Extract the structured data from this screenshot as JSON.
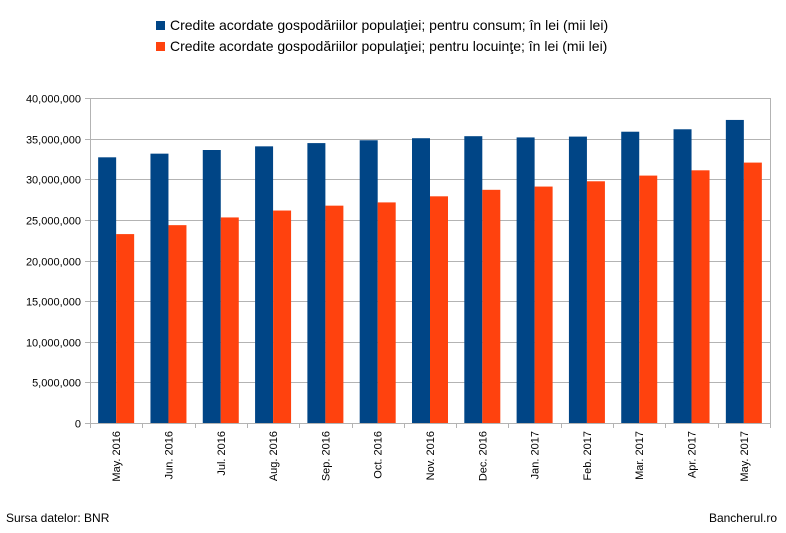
{
  "chart_data": {
    "type": "bar",
    "categories": [
      "May. 2016",
      "Jun. 2016",
      "Jul. 2016",
      "Aug. 2016",
      "Sep. 2016",
      "Oct. 2016",
      "Nov. 2016",
      "Dec. 2016",
      "Jan. 2017",
      "Feb. 2017",
      "Mar. 2017",
      "Apr. 2017",
      "May. 2017"
    ],
    "series": [
      {
        "name": "Credite acordate gospodăriilor populaţiei; pentru consum; în lei (mii lei)",
        "color": "#004586",
        "values": [
          32700000,
          33150000,
          33600000,
          34050000,
          34450000,
          34800000,
          35050000,
          35300000,
          35150000,
          35250000,
          35850000,
          36150000,
          37300000
        ]
      },
      {
        "name": "Credite acordate gospodăriilor populaţiei; pentru locuinţe; în lei (mii lei)",
        "color": "#ff420e",
        "values": [
          23250000,
          24350000,
          25300000,
          26150000,
          26750000,
          27150000,
          27900000,
          28700000,
          29100000,
          29750000,
          30450000,
          31100000,
          32050000
        ]
      }
    ],
    "ylim": [
      0,
      40000000
    ],
    "yticks": [
      "0",
      "5,000,000",
      "10,000,000",
      "15,000,000",
      "20,000,000",
      "25,000,000",
      "30,000,000",
      "35,000,000",
      "40,000,000"
    ],
    "grid": true,
    "legend_position": "top"
  },
  "footer": {
    "source": "Sursa datelor: BNR",
    "brand": "Bancherul.ro"
  }
}
